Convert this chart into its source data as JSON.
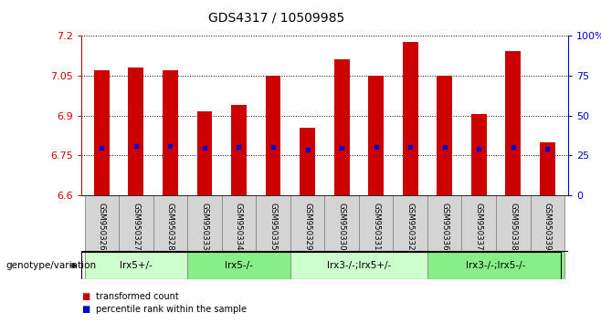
{
  "title": "GDS4317 / 10509985",
  "samples": [
    "GSM950326",
    "GSM950327",
    "GSM950328",
    "GSM950333",
    "GSM950334",
    "GSM950335",
    "GSM950329",
    "GSM950330",
    "GSM950331",
    "GSM950332",
    "GSM950336",
    "GSM950337",
    "GSM950338",
    "GSM950339"
  ],
  "bar_top": [
    7.07,
    7.08,
    7.07,
    6.915,
    6.94,
    7.05,
    6.855,
    7.11,
    7.05,
    7.175,
    7.05,
    6.905,
    7.14,
    6.8
  ],
  "bar_bottom": 6.6,
  "blue_mark": [
    6.78,
    6.785,
    6.785,
    6.78,
    6.783,
    6.782,
    6.773,
    6.78,
    6.782,
    6.782,
    6.782,
    6.775,
    6.782,
    6.775
  ],
  "ylim": [
    6.6,
    7.2
  ],
  "yticks": [
    6.6,
    6.75,
    6.9,
    7.05,
    7.2
  ],
  "ytick_labels": [
    "6.6",
    "6.75",
    "6.9",
    "7.05",
    "7.2"
  ],
  "right_yticks": [
    0,
    25,
    50,
    75,
    100
  ],
  "right_ytick_labels": [
    "0",
    "25",
    "50",
    "75",
    "100%"
  ],
  "bar_color": "#CC0000",
  "blue_color": "#0000CC",
  "groups": [
    {
      "label": "lrx5+/-",
      "start": 0,
      "end": 3
    },
    {
      "label": "lrx5-/-",
      "start": 3,
      "end": 6
    },
    {
      "label": "lrx3-/-;lrx5+/-",
      "start": 6,
      "end": 10
    },
    {
      "label": "lrx3-/-;lrx5-/-",
      "start": 10,
      "end": 14
    }
  ],
  "group_colors": [
    "#ccffcc",
    "#88ee88",
    "#ccffcc",
    "#88ee88"
  ],
  "legend_items": [
    {
      "color": "#CC0000",
      "label": "transformed count"
    },
    {
      "color": "#0000CC",
      "label": "percentile rank within the sample"
    }
  ],
  "sample_box_color": "#d4d4d4",
  "sample_box_border": "#888888"
}
